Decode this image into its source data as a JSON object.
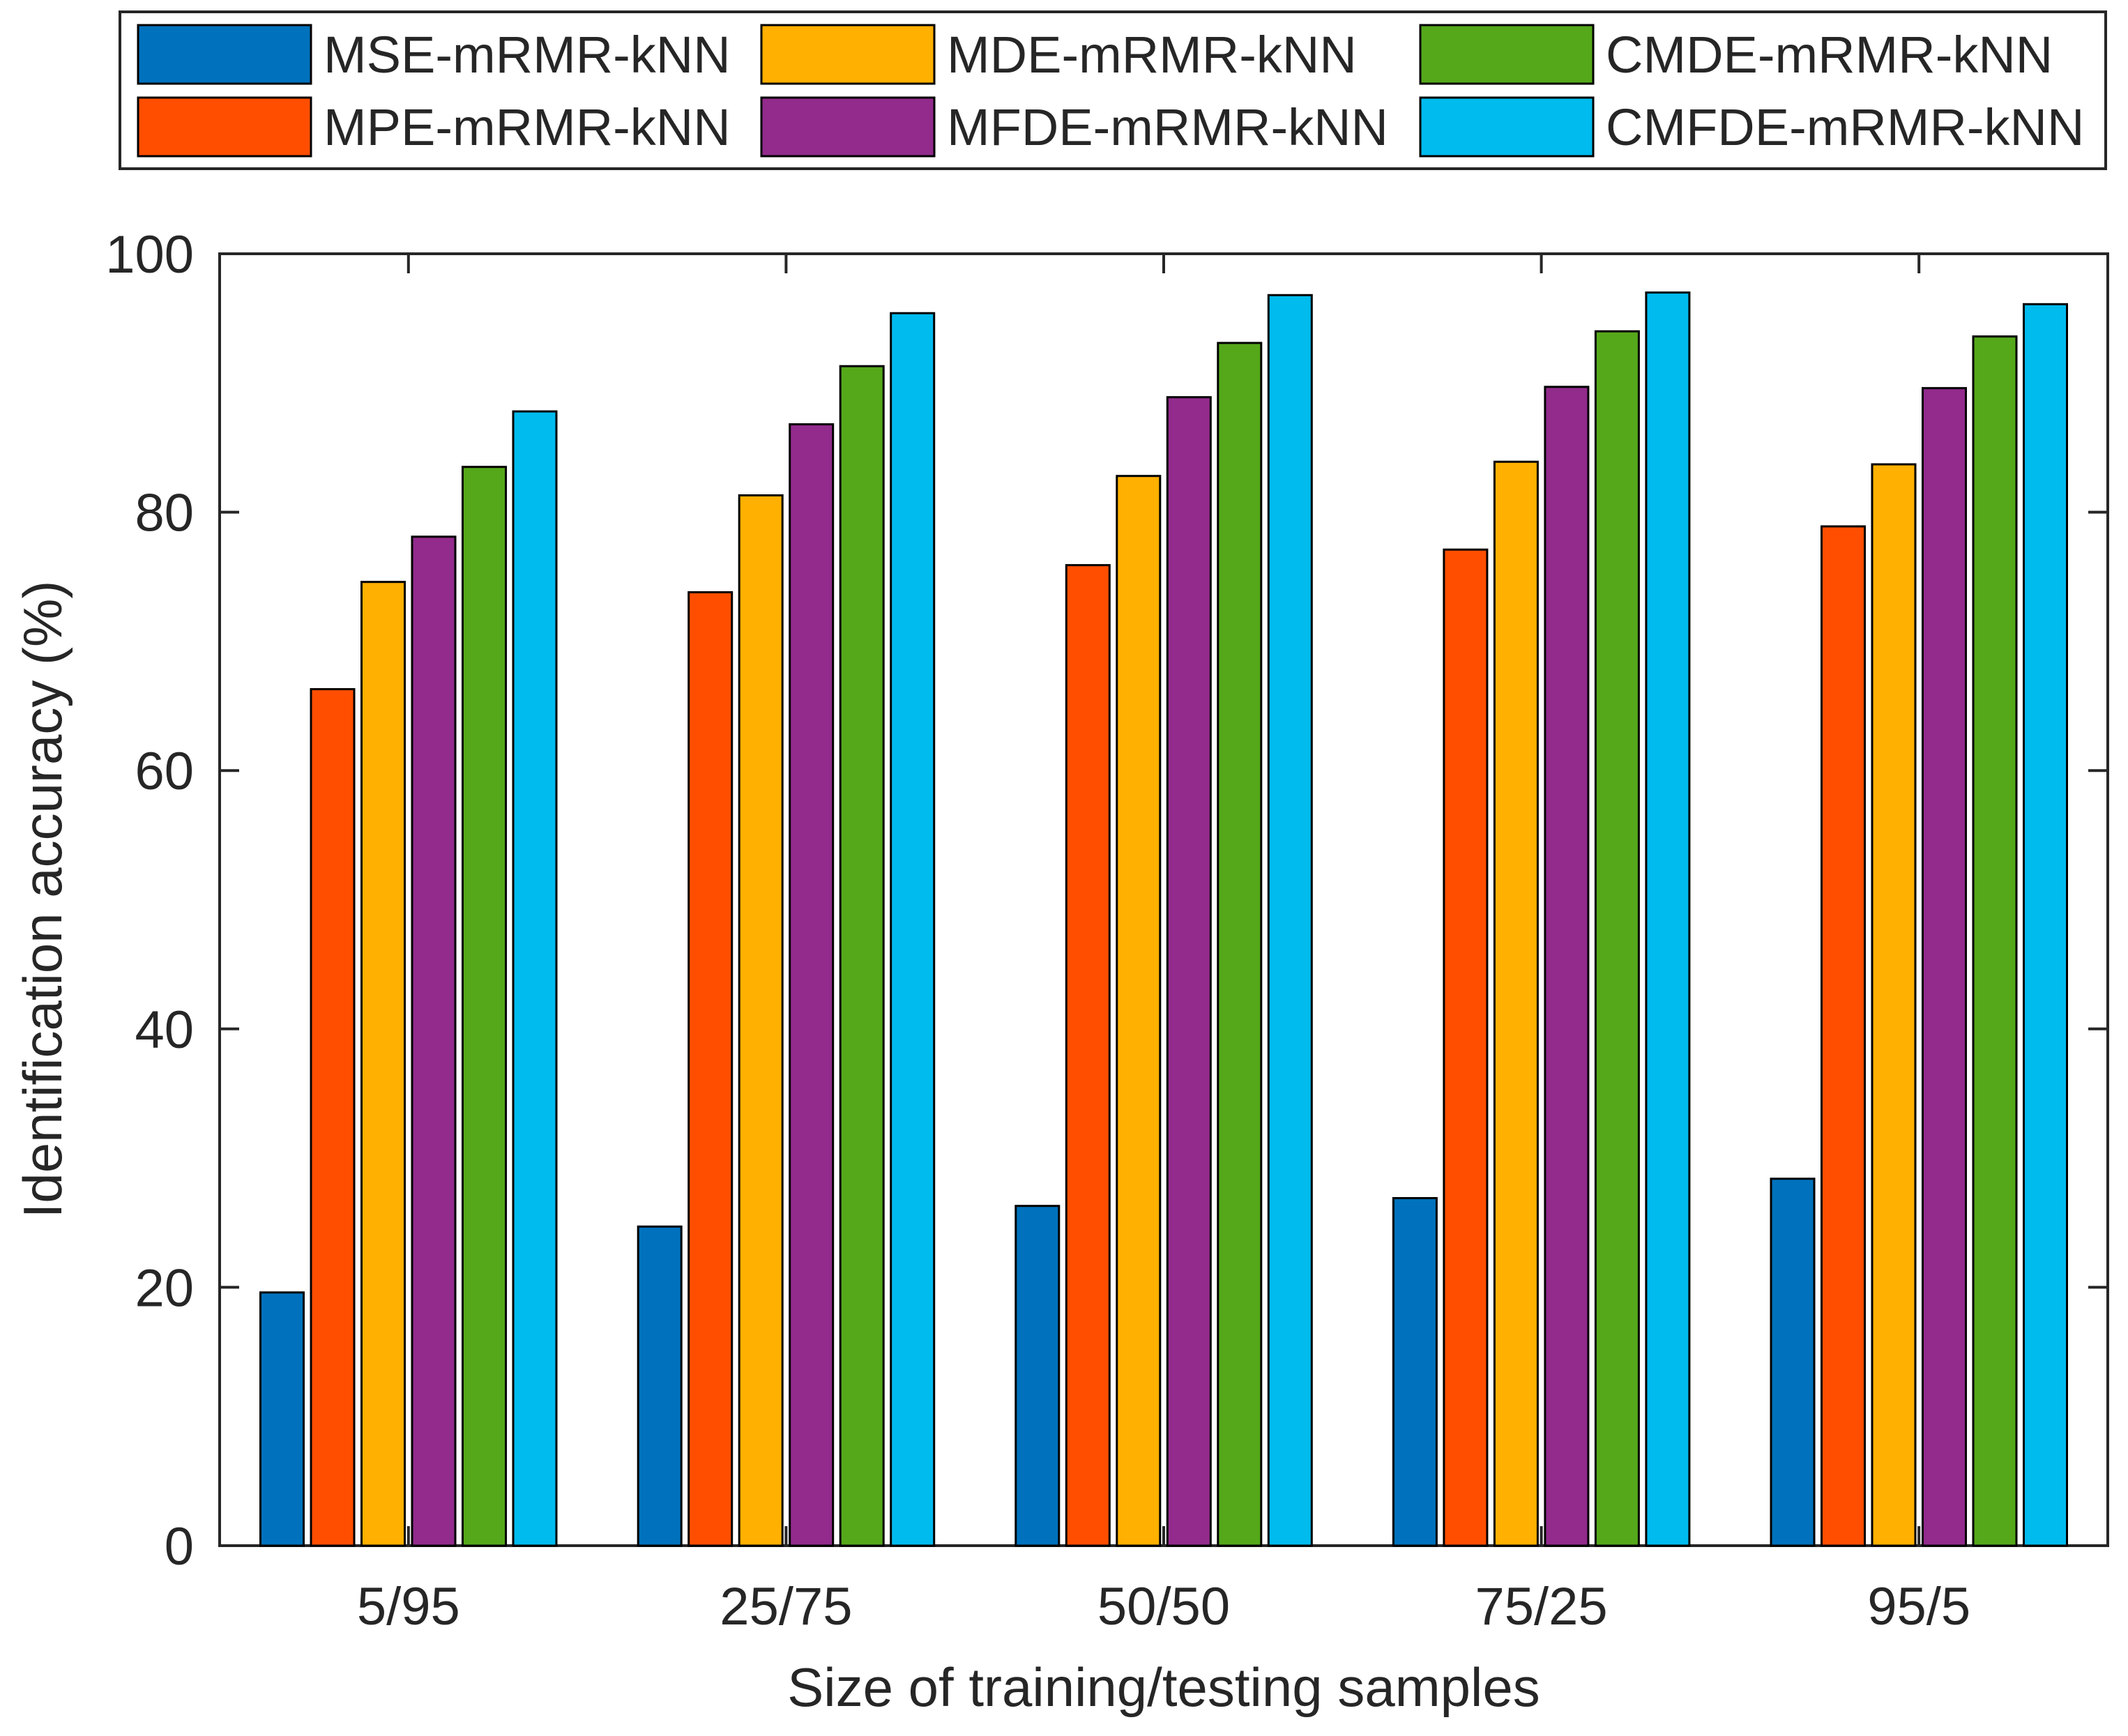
{
  "chart_data": {
    "type": "bar",
    "title": "",
    "xlabel": "Size of training/testing samples",
    "ylabel": "Identification accuracy (%)",
    "ylim": [
      0,
      100
    ],
    "yticks": [
      0,
      20,
      40,
      60,
      80,
      100
    ],
    "grid": false,
    "legend_position": "top",
    "categories": [
      "5/95",
      "25/75",
      "50/50",
      "75/25",
      "95/5"
    ],
    "series": [
      {
        "name": "MSE-mRMR-kNN",
        "color": "#0072BD",
        "values": [
          19.6,
          24.7,
          26.3,
          26.9,
          28.4
        ]
      },
      {
        "name": "MPE-mRMR-kNN",
        "color": "#FF4E00",
        "values": [
          66.3,
          73.8,
          75.9,
          77.1,
          78.9
        ]
      },
      {
        "name": "MDE-mRMR-kNN",
        "color": "#FFB000",
        "values": [
          74.6,
          81.3,
          82.8,
          83.9,
          83.7
        ]
      },
      {
        "name": "MFDE-mRMR-kNN",
        "color": "#922B8C",
        "values": [
          78.1,
          86.8,
          88.9,
          89.7,
          89.6
        ]
      },
      {
        "name": "CMDE-mRMR-kNN",
        "color": "#55A81A",
        "values": [
          83.5,
          91.3,
          93.1,
          94.0,
          93.6
        ]
      },
      {
        "name": "CMFDE-mRMR-kNN",
        "color": "#00BBEE",
        "values": [
          87.8,
          95.4,
          96.8,
          97.0,
          96.1
        ]
      }
    ]
  }
}
